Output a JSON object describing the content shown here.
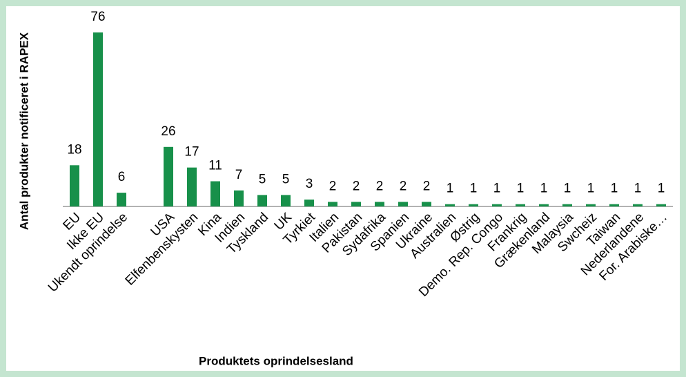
{
  "chart_data": {
    "type": "bar",
    "xlabel": "Produktets oprindelsesland",
    "ylabel": "Antal produkter notificeret i RAPEX",
    "categories": [
      "EU",
      "Ikke EU",
      "Ukendt oprindelse",
      null,
      "USA",
      "Elfenbenskysten",
      "Kina",
      "Indien",
      "Tyskland",
      "UK",
      "Tyrkiet",
      "Italien",
      "Pakistan",
      "Sydafrika",
      "Spanien",
      "Ukraine",
      "Australien",
      "Østrig",
      "Demo. Rep. Congo",
      "Frankrig",
      "Grækenland",
      "Malaysia",
      "Swcheiz",
      "Taiwan",
      "Nederlandene",
      "For. Arabiske…"
    ],
    "values": [
      18,
      76,
      6,
      null,
      26,
      17,
      11,
      7,
      5,
      5,
      3,
      2,
      2,
      2,
      2,
      2,
      1,
      1,
      1,
      1,
      1,
      1,
      1,
      1,
      1,
      1
    ],
    "color": "#17904a",
    "ylim": [
      0,
      76
    ]
  }
}
